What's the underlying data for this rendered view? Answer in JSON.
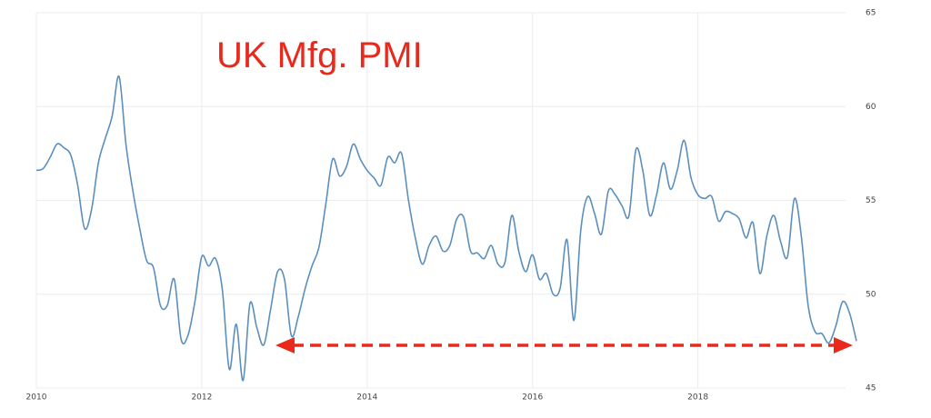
{
  "chart_data": {
    "type": "line",
    "title": "UK Mfg. PMI",
    "x": [
      2010.0,
      2010.083,
      2010.167,
      2010.25,
      2010.333,
      2010.417,
      2010.5,
      2010.583,
      2010.667,
      2010.75,
      2010.833,
      2010.917,
      2011.0,
      2011.083,
      2011.167,
      2011.25,
      2011.333,
      2011.417,
      2011.5,
      2011.583,
      2011.667,
      2011.75,
      2011.833,
      2011.917,
      2012.0,
      2012.083,
      2012.167,
      2012.25,
      2012.333,
      2012.417,
      2012.5,
      2012.583,
      2012.667,
      2012.75,
      2012.833,
      2012.917,
      2013.0,
      2013.083,
      2013.167,
      2013.25,
      2013.333,
      2013.417,
      2013.5,
      2013.583,
      2013.667,
      2013.75,
      2013.833,
      2013.917,
      2014.0,
      2014.083,
      2014.167,
      2014.25,
      2014.333,
      2014.417,
      2014.5,
      2014.583,
      2014.667,
      2014.75,
      2014.833,
      2014.917,
      2015.0,
      2015.083,
      2015.167,
      2015.25,
      2015.333,
      2015.417,
      2015.5,
      2015.583,
      2015.667,
      2015.75,
      2015.833,
      2015.917,
      2016.0,
      2016.083,
      2016.167,
      2016.25,
      2016.333,
      2016.417,
      2016.5,
      2016.583,
      2016.667,
      2016.75,
      2016.833,
      2016.917,
      2017.0,
      2017.083,
      2017.167,
      2017.25,
      2017.333,
      2017.417,
      2017.5,
      2017.583,
      2017.667,
      2017.75,
      2017.833,
      2017.917,
      2018.0,
      2018.083,
      2018.167,
      2018.25,
      2018.333,
      2018.417,
      2018.5,
      2018.583,
      2018.667,
      2018.75,
      2018.833,
      2018.917,
      2019.0,
      2019.083,
      2019.167,
      2019.25,
      2019.333,
      2019.417,
      2019.5,
      2019.583,
      2019.667,
      2019.75,
      2019.833,
      2019.917
    ],
    "series": [
      {
        "color": "#5b8fbd",
        "values": [
          56.6,
          56.7,
          57.3,
          58.0,
          57.8,
          57.4,
          55.8,
          53.5,
          54.5,
          57.0,
          58.3,
          59.5,
          61.6,
          58.0,
          55.5,
          53.5,
          51.8,
          51.4,
          49.4,
          49.4,
          50.8,
          47.6,
          47.8,
          49.6,
          52.0,
          51.5,
          51.9,
          50.2,
          46.0,
          48.4,
          45.4,
          49.5,
          48.2,
          47.3,
          49.2,
          51.2,
          50.8,
          47.8,
          48.8,
          50.3,
          51.5,
          52.5,
          54.8,
          57.2,
          56.3,
          56.8,
          58.0,
          57.2,
          56.6,
          56.2,
          55.8,
          57.3,
          57.0,
          57.5,
          55.0,
          53.0,
          51.6,
          52.6,
          53.1,
          52.3,
          52.6,
          54.0,
          54.1,
          52.3,
          52.2,
          51.9,
          52.6,
          51.6,
          51.7,
          54.2,
          52.3,
          51.2,
          52.1,
          50.8,
          51.1,
          50.0,
          50.3,
          52.9,
          48.6,
          53.4,
          55.2,
          54.3,
          53.2,
          55.5,
          55.3,
          54.7,
          54.2,
          57.7,
          56.6,
          54.2,
          55.3,
          57.0,
          55.6,
          56.6,
          58.2,
          56.2,
          55.3,
          55.1,
          55.2,
          53.9,
          54.4,
          54.3,
          54.0,
          53.0,
          53.8,
          51.1,
          53.1,
          54.2,
          52.8,
          52.0,
          55.1,
          53.1,
          49.4,
          48.0,
          47.9,
          47.4,
          48.3,
          49.6,
          49.0,
          47.5
        ]
      }
    ],
    "xlim": [
      2010.0,
      2019.917
    ],
    "xticks": [
      2010,
      2012,
      2014,
      2016,
      2018
    ],
    "ylim": [
      45,
      65
    ],
    "yticks": [
      45,
      50,
      55,
      60,
      65
    ],
    "grid": true
  }
}
